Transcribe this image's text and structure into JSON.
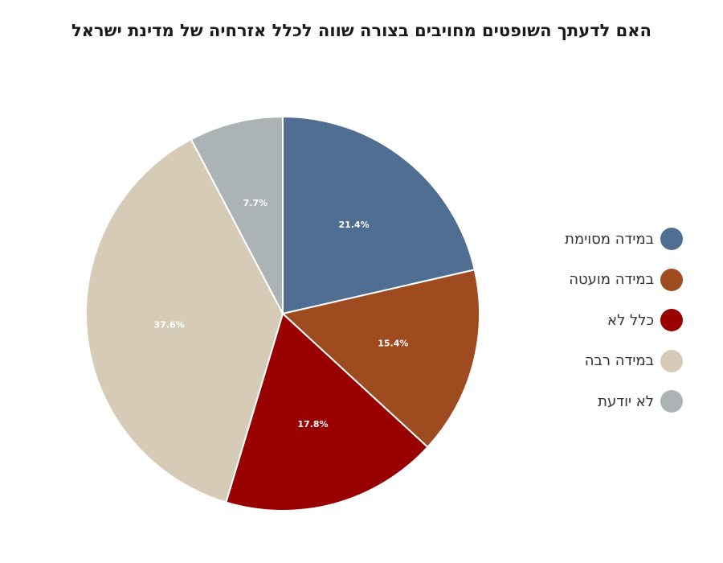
{
  "chart_data": {
    "type": "pie",
    "title": "האם לדעתך השופטים מחויבים בצורה שווה לכלל אזרחיה של מדינת ישראל",
    "slices": [
      {
        "label": "במידה מסוימת",
        "value": 21.4,
        "display": "21.4%",
        "color": "#506E92"
      },
      {
        "label": "במידה מועטה",
        "value": 15.4,
        "display": "15.4%",
        "color": "#9E4B20"
      },
      {
        "label": "כלל לא",
        "value": 17.8,
        "display": "17.8%",
        "color": "#990000"
      },
      {
        "label": "במידה רבה",
        "value": 37.6,
        "display": "37.6%",
        "color": "#D5CBB7"
      },
      {
        "label": "לא יודעת",
        "value": 7.7,
        "display": "7.7%",
        "color": "#ACB3B4"
      }
    ],
    "start_angle": "12 o'clock",
    "direction": "clockwise",
    "legend_position": "right"
  }
}
